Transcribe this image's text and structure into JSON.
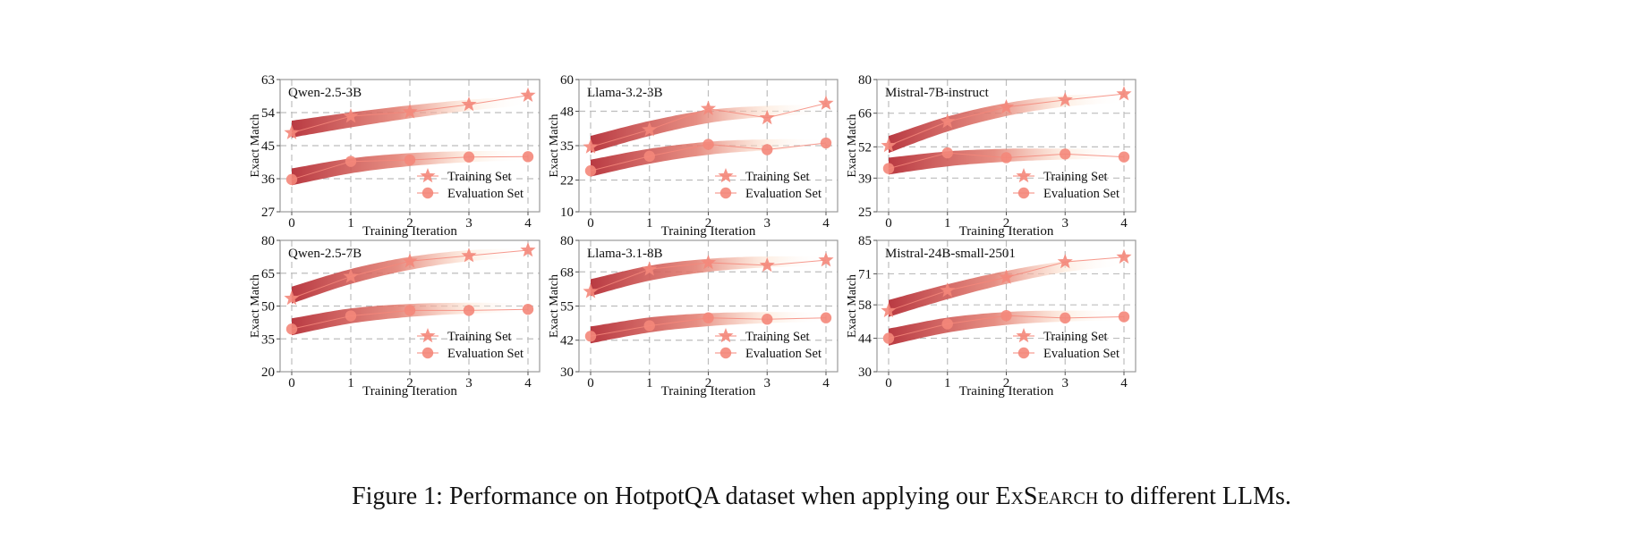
{
  "caption": {
    "prefix": "Figure 1: Performance on HotpotQA dataset when applying our ",
    "method": "ExSearch",
    "suffix": " to different LLMs."
  },
  "colors": {
    "marker": "#f4877a",
    "band_dark": "#b93a42",
    "band_light": "#fde3cf",
    "grid": "#bdbdbd",
    "axis": "#9a9a9a"
  },
  "chart_data": [
    {
      "type": "line",
      "title": "Qwen-2.5-3B",
      "xlabel": "Training Iteration",
      "ylabel": "Exact Match",
      "x": [
        0,
        1,
        2,
        3,
        4
      ],
      "ylim": [
        27,
        63
      ],
      "yticks": [
        27,
        36,
        45,
        54,
        63
      ],
      "grid": true,
      "legend_position": "lower right",
      "series": [
        {
          "name": "Training Set",
          "marker": "star",
          "values": [
            48.5,
            53.0,
            54.2,
            56.2,
            58.7
          ],
          "trend": [
            49.5,
            52.0,
            54.2,
            56.0,
            57.3
          ]
        },
        {
          "name": "Evaluation Set",
          "marker": "circle",
          "values": [
            35.8,
            40.7,
            41.1,
            41.9,
            42.0
          ],
          "trend": [
            36.5,
            39.5,
            41.2,
            42.0,
            42.3
          ]
        }
      ]
    },
    {
      "type": "line",
      "title": "Llama-3.2-3B",
      "xlabel": "Training Iteration",
      "ylabel": "Exact Match",
      "x": [
        0,
        1,
        2,
        3,
        4
      ],
      "ylim": [
        10,
        60
      ],
      "yticks": [
        10,
        22,
        35,
        48,
        60
      ],
      "grid": true,
      "legend_position": "lower right",
      "series": [
        {
          "name": "Training Set",
          "marker": "star",
          "values": [
            34.5,
            41.0,
            49.0,
            45.5,
            51.0
          ],
          "trend": [
            35.5,
            41.5,
            46.0,
            48.0,
            48.8
          ]
        },
        {
          "name": "Evaluation Set",
          "marker": "circle",
          "values": [
            25.5,
            31.0,
            35.5,
            33.5,
            36.0
          ],
          "trend": [
            26.5,
            31.0,
            34.0,
            35.3,
            35.6
          ]
        }
      ]
    },
    {
      "type": "line",
      "title": "Mistral-7B-instruct",
      "xlabel": "Training Iteration",
      "ylabel": "Exact Match",
      "x": [
        0,
        1,
        2,
        3,
        4
      ],
      "ylim": [
        25,
        80
      ],
      "yticks": [
        25,
        39,
        52,
        66,
        80
      ],
      "grid": true,
      "legend_position": "lower right",
      "series": [
        {
          "name": "Training Set",
          "marker": "star",
          "values": [
            52.5,
            62.5,
            68.5,
            71.5,
            74.0
          ],
          "trend": [
            53.0,
            61.5,
            67.5,
            71.0,
            72.3
          ]
        },
        {
          "name": "Evaluation Set",
          "marker": "circle",
          "values": [
            43.0,
            49.5,
            47.5,
            49.0,
            47.8
          ],
          "trend": [
            44.0,
            47.0,
            48.5,
            49.0,
            49.0
          ]
        }
      ]
    },
    {
      "type": "line",
      "title": "Qwen-2.5-7B",
      "xlabel": "Training Iteration",
      "ylabel": "Exact Match",
      "x": [
        0,
        1,
        2,
        3,
        4
      ],
      "ylim": [
        20,
        80
      ],
      "yticks": [
        20,
        35,
        50,
        65,
        80
      ],
      "grid": true,
      "legend_position": "lower right",
      "series": [
        {
          "name": "Training Set",
          "marker": "star",
          "values": [
            53.5,
            63.5,
            70.5,
            73.0,
            75.5
          ],
          "trend": [
            55.0,
            63.5,
            69.5,
            73.0,
            74.3
          ]
        },
        {
          "name": "Evaluation Set",
          "marker": "circle",
          "values": [
            39.5,
            45.5,
            48.0,
            48.0,
            48.5
          ],
          "trend": [
            40.5,
            45.5,
            48.0,
            49.0,
            49.2
          ]
        }
      ]
    },
    {
      "type": "line",
      "title": "Llama-3.1-8B",
      "xlabel": "Training Iteration",
      "ylabel": "Exact Match",
      "x": [
        0,
        1,
        2,
        3,
        4
      ],
      "ylim": [
        30,
        80
      ],
      "yticks": [
        30,
        42,
        55,
        68,
        80
      ],
      "grid": true,
      "legend_position": "lower right",
      "series": [
        {
          "name": "Training Set",
          "marker": "star",
          "values": [
            60.5,
            69.0,
            71.5,
            70.5,
            72.5
          ],
          "trend": [
            62.0,
            67.5,
            70.5,
            71.8,
            72.0
          ]
        },
        {
          "name": "Evaluation Set",
          "marker": "circle",
          "values": [
            43.5,
            47.5,
            50.5,
            50.0,
            50.5
          ],
          "trend": [
            44.0,
            47.8,
            49.8,
            50.6,
            50.8
          ]
        }
      ]
    },
    {
      "type": "line",
      "title": "Mistral-24B-small-2501",
      "xlabel": "Training Iteration",
      "ylabel": "Exact Match",
      "x": [
        0,
        1,
        2,
        3,
        4
      ],
      "ylim": [
        30,
        85
      ],
      "yticks": [
        30,
        44,
        58,
        71,
        85
      ],
      "grid": true,
      "legend_position": "lower right",
      "series": [
        {
          "name": "Training Set",
          "marker": "star",
          "values": [
            55.5,
            64.0,
            69.5,
            76.0,
            78.0
          ],
          "trend": [
            56.5,
            63.5,
            69.5,
            74.0,
            76.3
          ]
        },
        {
          "name": "Evaluation Set",
          "marker": "circle",
          "values": [
            44.0,
            50.0,
            53.5,
            52.5,
            53.0
          ],
          "trend": [
            44.5,
            49.5,
            52.3,
            53.3,
            53.5
          ]
        }
      ]
    }
  ]
}
